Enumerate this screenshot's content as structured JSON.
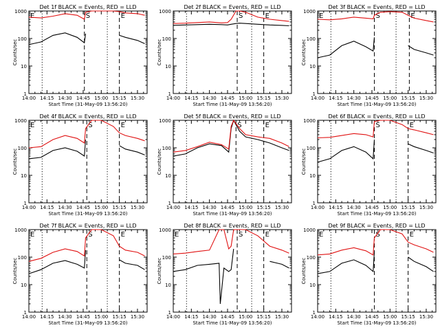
{
  "figure": {
    "series_names": [
      "Events",
      "LLD"
    ],
    "series_colors": {
      "Events": "#000000",
      "LLD": "#e01010"
    }
  },
  "chart_data": [
    {
      "type": "line",
      "title": "Det 1f BLACK = Events, RED = LLD",
      "xlabel": "Start Time (31-May-09 13:56:20)",
      "ylabel": "Counts/sec",
      "ylim": [
        1,
        1000
      ],
      "yscale": "log",
      "x_ticks": [
        "14:00",
        "14:15",
        "14:30",
        "14:45",
        "15:00",
        "15:15",
        "15:30"
      ],
      "y_ticks": [
        "1",
        "10",
        "100",
        "1000"
      ],
      "markers": [
        {
          "label": "E",
          "x": "14:00"
        },
        {
          "label": "S",
          "x": "14:46"
        },
        {
          "label": "E",
          "x": "15:15"
        }
      ],
      "dotted_lines": [
        "14:11",
        "15:05"
      ],
      "x": [
        "14:00",
        "14:10",
        "14:20",
        "14:30",
        "14:40",
        "14:46",
        "14:47",
        "14:52",
        "15:00",
        "15:10",
        "15:15",
        "15:20",
        "15:30",
        "15:36"
      ],
      "series": [
        {
          "name": "Events",
          "values": [
            60,
            75,
            130,
            160,
            110,
            70,
            150,
            null,
            null,
            null,
            130,
            110,
            85,
            65
          ]
        },
        {
          "name": "LLD",
          "values": [
            600,
            560,
            650,
            800,
            700,
            500,
            900,
            1000,
            1000,
            1000,
            950,
            850,
            800,
            700
          ]
        }
      ]
    },
    {
      "type": "line",
      "title": "Det 2f BLACK = Events, RED = LLD",
      "xlabel": "Start Time (31-May-09 13:56:20)",
      "ylabel": "Counts/sec",
      "ylim": [
        1,
        1000
      ],
      "yscale": "log",
      "x_ticks": [
        "14:00",
        "14:15",
        "14:30",
        "14:45",
        "15:00",
        "15:15",
        "15:30"
      ],
      "y_ticks": [
        "1",
        "10",
        "100",
        "1000"
      ],
      "markers": [
        {
          "label": "S",
          "x": "14:53"
        },
        {
          "label": "E",
          "x": "15:15"
        }
      ],
      "dotted_lines": [
        "14:11",
        "15:05"
      ],
      "x": [
        "14:00",
        "14:10",
        "14:20",
        "14:30",
        "14:40",
        "14:45",
        "14:48",
        "14:52",
        "14:55",
        "15:00",
        "15:10",
        "15:20",
        "15:30",
        "15:36"
      ],
      "series": [
        {
          "name": "Events",
          "values": [
            300,
            310,
            320,
            330,
            320,
            310,
            330,
            350,
            360,
            350,
            330,
            310,
            300,
            290
          ]
        },
        {
          "name": "LLD",
          "values": [
            350,
            360,
            380,
            400,
            370,
            380,
            500,
            1500,
            1700,
            900,
            600,
            500,
            450,
            420
          ]
        }
      ]
    },
    {
      "type": "line",
      "title": "Det 3f BLACK = Events, RED = LLD",
      "xlabel": "Start Time (31-May-09 13:56:20)",
      "ylabel": "Counts/sec",
      "ylim": [
        1,
        1000
      ],
      "yscale": "log",
      "x_ticks": [
        "14:00",
        "14:15",
        "14:30",
        "14:45",
        "15:00",
        "15:15",
        "15:30"
      ],
      "y_ticks": [
        "1",
        "10",
        "100",
        "1000"
      ],
      "markers": [
        {
          "label": "E",
          "x": "14:00"
        },
        {
          "label": "S",
          "x": "14:47"
        },
        {
          "label": "E",
          "x": "15:16"
        }
      ],
      "dotted_lines": [
        "14:11",
        "15:05"
      ],
      "x": [
        "14:00",
        "14:10",
        "14:20",
        "14:30",
        "14:40",
        "14:46",
        "14:47",
        "14:52",
        "15:00",
        "15:10",
        "15:15",
        "15:20",
        "15:30",
        "15:36"
      ],
      "series": [
        {
          "name": "Events",
          "values": [
            20,
            25,
            55,
            80,
            50,
            35,
            110,
            null,
            null,
            null,
            55,
            40,
            30,
            25
          ]
        },
        {
          "name": "LLD",
          "values": [
            500,
            480,
            520,
            600,
            550,
            520,
            700,
            900,
            950,
            900,
            700,
            550,
            450,
            400
          ]
        }
      ]
    },
    {
      "type": "line",
      "title": "Det 4f BLACK = Events, RED = LLD",
      "xlabel": "Start Time (31-May-09 13:56:20)",
      "ylabel": "Counts/sec",
      "ylim": [
        1,
        1000
      ],
      "yscale": "log",
      "x_ticks": [
        "14:00",
        "14:15",
        "14:30",
        "14:45",
        "15:00",
        "15:15",
        "15:30"
      ],
      "y_ticks": [
        "1",
        "10",
        "100",
        "1000"
      ],
      "markers": [
        {
          "label": "E",
          "x": "14:00"
        },
        {
          "label": "S",
          "x": "14:48"
        },
        {
          "label": "E",
          "x": "15:15"
        }
      ],
      "dotted_lines": [
        "14:11",
        "15:05"
      ],
      "x": [
        "14:00",
        "14:10",
        "14:20",
        "14:30",
        "14:40",
        "14:46",
        "14:47",
        "14:52",
        "15:00",
        "15:10",
        "15:15",
        "15:20",
        "15:30",
        "15:36"
      ],
      "series": [
        {
          "name": "Events",
          "values": [
            40,
            45,
            80,
            100,
            75,
            50,
            200,
            null,
            null,
            null,
            120,
            90,
            70,
            55
          ]
        },
        {
          "name": "LLD",
          "values": [
            100,
            110,
            200,
            280,
            220,
            150,
            500,
            1000,
            1000,
            600,
            350,
            280,
            220,
            180
          ]
        }
      ]
    },
    {
      "type": "line",
      "title": "Det 5f BLACK = Events, RED = LLD",
      "xlabel": "Start Time (31-May-09 13:56:20)",
      "ylabel": "Counts/sec",
      "ylim": [
        1,
        1000
      ],
      "yscale": "log",
      "x_ticks": [
        "14:00",
        "14:15",
        "14:30",
        "14:45",
        "15:00",
        "15:15",
        "15:30"
      ],
      "y_ticks": [
        "1",
        "10",
        "100",
        "1000"
      ],
      "markers": [
        {
          "label": "S",
          "x": "14:52"
        },
        {
          "label": "E",
          "x": "15:15"
        }
      ],
      "dotted_lines": [
        "14:11",
        "15:05"
      ],
      "x": [
        "14:00",
        "14:10",
        "14:20",
        "14:30",
        "14:40",
        "14:46",
        "14:48",
        "14:50",
        "14:55",
        "15:00",
        "15:10",
        "15:20",
        "15:30",
        "15:36"
      ],
      "series": [
        {
          "name": "Events",
          "values": [
            50,
            60,
            100,
            140,
            120,
            70,
            500,
            1000,
            400,
            250,
            200,
            150,
            100,
            80
          ]
        },
        {
          "name": "LLD",
          "values": [
            70,
            80,
            110,
            160,
            130,
            90,
            600,
            1000,
            500,
            300,
            250,
            220,
            150,
            110
          ]
        }
      ]
    },
    {
      "type": "line",
      "title": "Det 6f BLACK = Events, RED = LLD",
      "xlabel": "Start Time (31-May-09 13:56:20)",
      "ylabel": "Counts/sec",
      "ylim": [
        1,
        1000
      ],
      "yscale": "log",
      "x_ticks": [
        "14:00",
        "14:15",
        "14:30",
        "14:45",
        "15:00",
        "15:15",
        "15:30"
      ],
      "y_ticks": [
        "1",
        "10",
        "100",
        "1000"
      ],
      "markers": [
        {
          "label": "S",
          "x": "14:47"
        },
        {
          "label": "E",
          "x": "15:15"
        }
      ],
      "dotted_lines": [
        "14:11",
        "15:05"
      ],
      "x": [
        "14:00",
        "14:10",
        "14:20",
        "14:30",
        "14:40",
        "14:46",
        "14:47",
        "14:52",
        "15:00",
        "15:10",
        "15:15",
        "15:20",
        "15:30",
        "15:36"
      ],
      "series": [
        {
          "name": "Events",
          "values": [
            30,
            40,
            80,
            110,
            70,
            40,
            200,
            null,
            null,
            null,
            140,
            110,
            80,
            65
          ]
        },
        {
          "name": "LLD",
          "values": [
            230,
            240,
            280,
            330,
            300,
            250,
            900,
            1000,
            1000,
            700,
            500,
            450,
            350,
            300
          ]
        }
      ]
    },
    {
      "type": "line",
      "title": "Det 7f BLACK = Events, RED = LLD",
      "xlabel": "Start Time (31-May-09 13:56:20)",
      "ylabel": "Counts/sec",
      "ylim": [
        1,
        1000
      ],
      "yscale": "log",
      "x_ticks": [
        "14:00",
        "14:15",
        "14:30",
        "14:45",
        "15:00",
        "15:15",
        "15:30"
      ],
      "y_ticks": [
        "1",
        "10",
        "100",
        "1000"
      ],
      "markers": [
        {
          "label": "E",
          "x": "14:00"
        },
        {
          "label": "S",
          "x": "14:48"
        },
        {
          "label": "E",
          "x": "15:15"
        }
      ],
      "dotted_lines": [
        "14:11",
        "15:05"
      ],
      "x": [
        "14:00",
        "14:10",
        "14:20",
        "14:30",
        "14:40",
        "14:46",
        "14:47",
        "14:52",
        "15:00",
        "15:10",
        "15:15",
        "15:20",
        "15:30",
        "15:36"
      ],
      "series": [
        {
          "name": "Events",
          "values": [
            25,
            35,
            60,
            75,
            55,
            40,
            180,
            null,
            null,
            null,
            80,
            60,
            50,
            35
          ]
        },
        {
          "name": "LLD",
          "values": [
            70,
            90,
            150,
            200,
            160,
            110,
            500,
            1000,
            1000,
            600,
            250,
            180,
            150,
            110
          ]
        }
      ]
    },
    {
      "type": "line",
      "title": "Det 8f BLACK = Events, RED = LLD",
      "xlabel": "Start Time (31-May-09 13:56:20)",
      "ylabel": "Counts/sec",
      "ylim": [
        1,
        1000
      ],
      "yscale": "log",
      "x_ticks": [
        "14:00",
        "14:15",
        "14:30",
        "14:45",
        "15:00",
        "15:15",
        "15:30"
      ],
      "y_ticks": [
        "1",
        "10",
        "100",
        "1000"
      ],
      "markers": [
        {
          "label": "E",
          "x": "14:00"
        },
        {
          "label": "S",
          "x": "14:53"
        },
        {
          "label": "E",
          "x": "15:15"
        }
      ],
      "dotted_lines": [
        "14:11",
        "15:05"
      ],
      "x": [
        "14:00",
        "14:10",
        "14:20",
        "14:30",
        "14:38",
        "14:39",
        "14:42",
        "14:46",
        "14:48",
        "14:50",
        "14:55",
        "15:00",
        "15:10",
        "15:20",
        "15:30",
        "15:36"
      ],
      "series": [
        {
          "name": "Events",
          "values": [
            30,
            35,
            50,
            55,
            60,
            2,
            40,
            30,
            35,
            200,
            null,
            null,
            null,
            70,
            55,
            40
          ]
        },
        {
          "name": "LLD",
          "values": [
            130,
            140,
            160,
            180,
            1000,
            1000,
            1000,
            200,
            250,
            1000,
            1000,
            1000,
            600,
            250,
            180,
            140
          ]
        }
      ]
    },
    {
      "type": "line",
      "title": "Det 9f BLACK = Events, RED = LLD",
      "xlabel": "Start Time (31-May-09 13:56:20)",
      "ylabel": "Counts/sec",
      "ylim": [
        1,
        1000
      ],
      "yscale": "log",
      "x_ticks": [
        "14:00",
        "14:15",
        "14:30",
        "14:45",
        "15:00",
        "15:15",
        "15:30"
      ],
      "y_ticks": [
        "1",
        "10",
        "100",
        "1000"
      ],
      "markers": [
        {
          "label": "E",
          "x": "14:00"
        },
        {
          "label": "S",
          "x": "14:47"
        },
        {
          "label": "E",
          "x": "15:15"
        }
      ],
      "dotted_lines": [
        "14:11",
        "15:05"
      ],
      "x": [
        "14:00",
        "14:10",
        "14:20",
        "14:30",
        "14:40",
        "14:46",
        "14:47",
        "14:52",
        "15:00",
        "15:10",
        "15:15",
        "15:20",
        "15:30",
        "15:36"
      ],
      "series": [
        {
          "name": "Events",
          "values": [
            25,
            30,
            60,
            80,
            50,
            30,
            150,
            null,
            null,
            null,
            100,
            70,
            45,
            30
          ]
        },
        {
          "name": "LLD",
          "values": [
            120,
            130,
            180,
            220,
            170,
            120,
            500,
            1000,
            1000,
            700,
            350,
            280,
            200,
            150
          ]
        }
      ]
    }
  ]
}
